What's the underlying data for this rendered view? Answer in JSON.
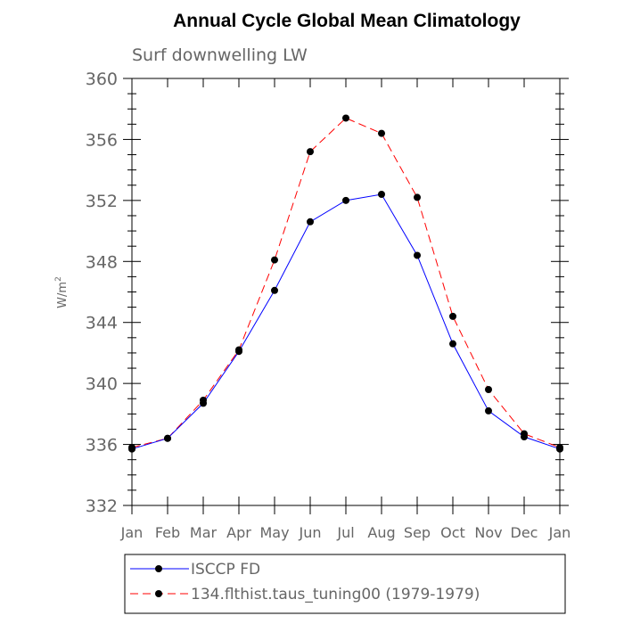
{
  "chart_data": {
    "type": "line",
    "title": "Annual Cycle Global Mean Climatology",
    "subtitle": "Surf downwelling LW",
    "ylabel_base": "W/m",
    "ylabel_exp": "2",
    "categories": [
      "Jan",
      "Feb",
      "Mar",
      "Apr",
      "May",
      "Jun",
      "Jul",
      "Aug",
      "Sep",
      "Oct",
      "Nov",
      "Dec",
      "Jan"
    ],
    "ylim": [
      332,
      360
    ],
    "yticks": [
      "332",
      "336",
      "340",
      "344",
      "348",
      "352",
      "356",
      "360"
    ],
    "grid": false,
    "legend_position": "bottom",
    "series": [
      {
        "name": "ISCCP FD",
        "color": "#0000ff",
        "dash": "solid",
        "values": [
          335.7,
          336.4,
          338.7,
          342.1,
          346.1,
          350.6,
          352.0,
          352.4,
          348.4,
          342.6,
          338.2,
          336.5,
          335.7
        ]
      },
      {
        "name": "134.flthist.taus_tuning00 (1979-1979)",
        "color": "#ff0000",
        "dash": "dashed",
        "values": [
          335.8,
          336.4,
          338.9,
          342.2,
          348.1,
          355.2,
          357.4,
          356.4,
          352.2,
          344.4,
          339.6,
          336.7,
          335.8
        ]
      }
    ]
  }
}
